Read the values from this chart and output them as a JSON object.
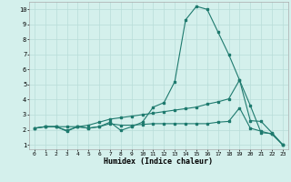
{
  "xlabel": "Humidex (Indice chaleur)",
  "bg_color": "#d4f0ec",
  "line_color": "#1e7a6e",
  "grid_color": "#b8ddd8",
  "xlim": [
    -0.5,
    23.5
  ],
  "ylim": [
    0.7,
    10.5
  ],
  "xticks": [
    0,
    1,
    2,
    3,
    4,
    5,
    6,
    7,
    8,
    9,
    10,
    11,
    12,
    13,
    14,
    15,
    16,
    17,
    18,
    19,
    20,
    21,
    22,
    23
  ],
  "yticks": [
    1,
    2,
    3,
    4,
    5,
    6,
    7,
    8,
    9,
    10
  ],
  "line1_x": [
    0,
    1,
    2,
    3,
    4,
    5,
    6,
    7,
    8,
    9,
    10,
    11,
    12,
    13,
    14,
    15,
    16,
    17,
    18,
    19,
    20,
    21,
    22,
    23
  ],
  "line1_y": [
    2.1,
    2.2,
    2.2,
    1.9,
    2.2,
    2.1,
    2.2,
    2.5,
    1.95,
    2.2,
    2.5,
    3.5,
    3.8,
    5.2,
    9.3,
    10.2,
    10.0,
    8.5,
    7.0,
    5.3,
    3.6,
    1.8,
    1.75,
    1.0
  ],
  "line2_x": [
    0,
    1,
    2,
    3,
    4,
    5,
    6,
    7,
    8,
    9,
    10,
    11,
    12,
    13,
    14,
    15,
    16,
    17,
    18,
    19,
    20,
    21,
    22,
    23
  ],
  "line2_y": [
    2.1,
    2.2,
    2.2,
    2.2,
    2.2,
    2.3,
    2.5,
    2.7,
    2.8,
    2.9,
    3.0,
    3.1,
    3.2,
    3.3,
    3.4,
    3.5,
    3.7,
    3.85,
    4.05,
    5.3,
    2.6,
    2.55,
    1.8,
    1.0
  ],
  "line3_x": [
    0,
    1,
    2,
    3,
    4,
    5,
    6,
    7,
    8,
    9,
    10,
    11,
    12,
    13,
    14,
    15,
    16,
    17,
    18,
    19,
    20,
    21,
    22,
    23
  ],
  "line3_y": [
    2.1,
    2.2,
    2.2,
    1.95,
    2.2,
    2.1,
    2.2,
    2.4,
    2.3,
    2.3,
    2.35,
    2.4,
    2.4,
    2.4,
    2.4,
    2.4,
    2.4,
    2.5,
    2.55,
    3.45,
    2.1,
    1.9,
    1.7,
    1.0
  ]
}
